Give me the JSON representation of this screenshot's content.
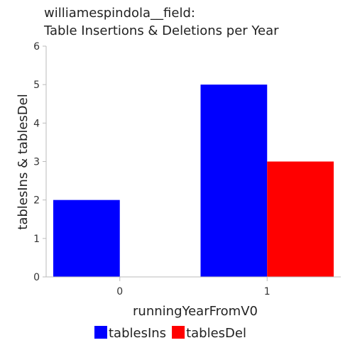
{
  "chart_data": {
    "type": "bar",
    "title": [
      "williamespindola__field:",
      "Table Insertions & Deletions per Year"
    ],
    "xlabel": "runningYearFromV0",
    "ylabel": "tablesIns & tablesDel",
    "categories": [
      "0",
      "1"
    ],
    "series": [
      {
        "name": "tablesIns",
        "color": "#0000ff",
        "values": [
          2,
          5
        ]
      },
      {
        "name": "tablesDel",
        "color": "#ff0000",
        "values": [
          0,
          3
        ]
      }
    ],
    "ylim": [
      0,
      6
    ],
    "yticks": [
      0,
      1,
      2,
      3,
      4,
      5,
      6
    ],
    "grid": false,
    "legend_position": "bottom"
  }
}
